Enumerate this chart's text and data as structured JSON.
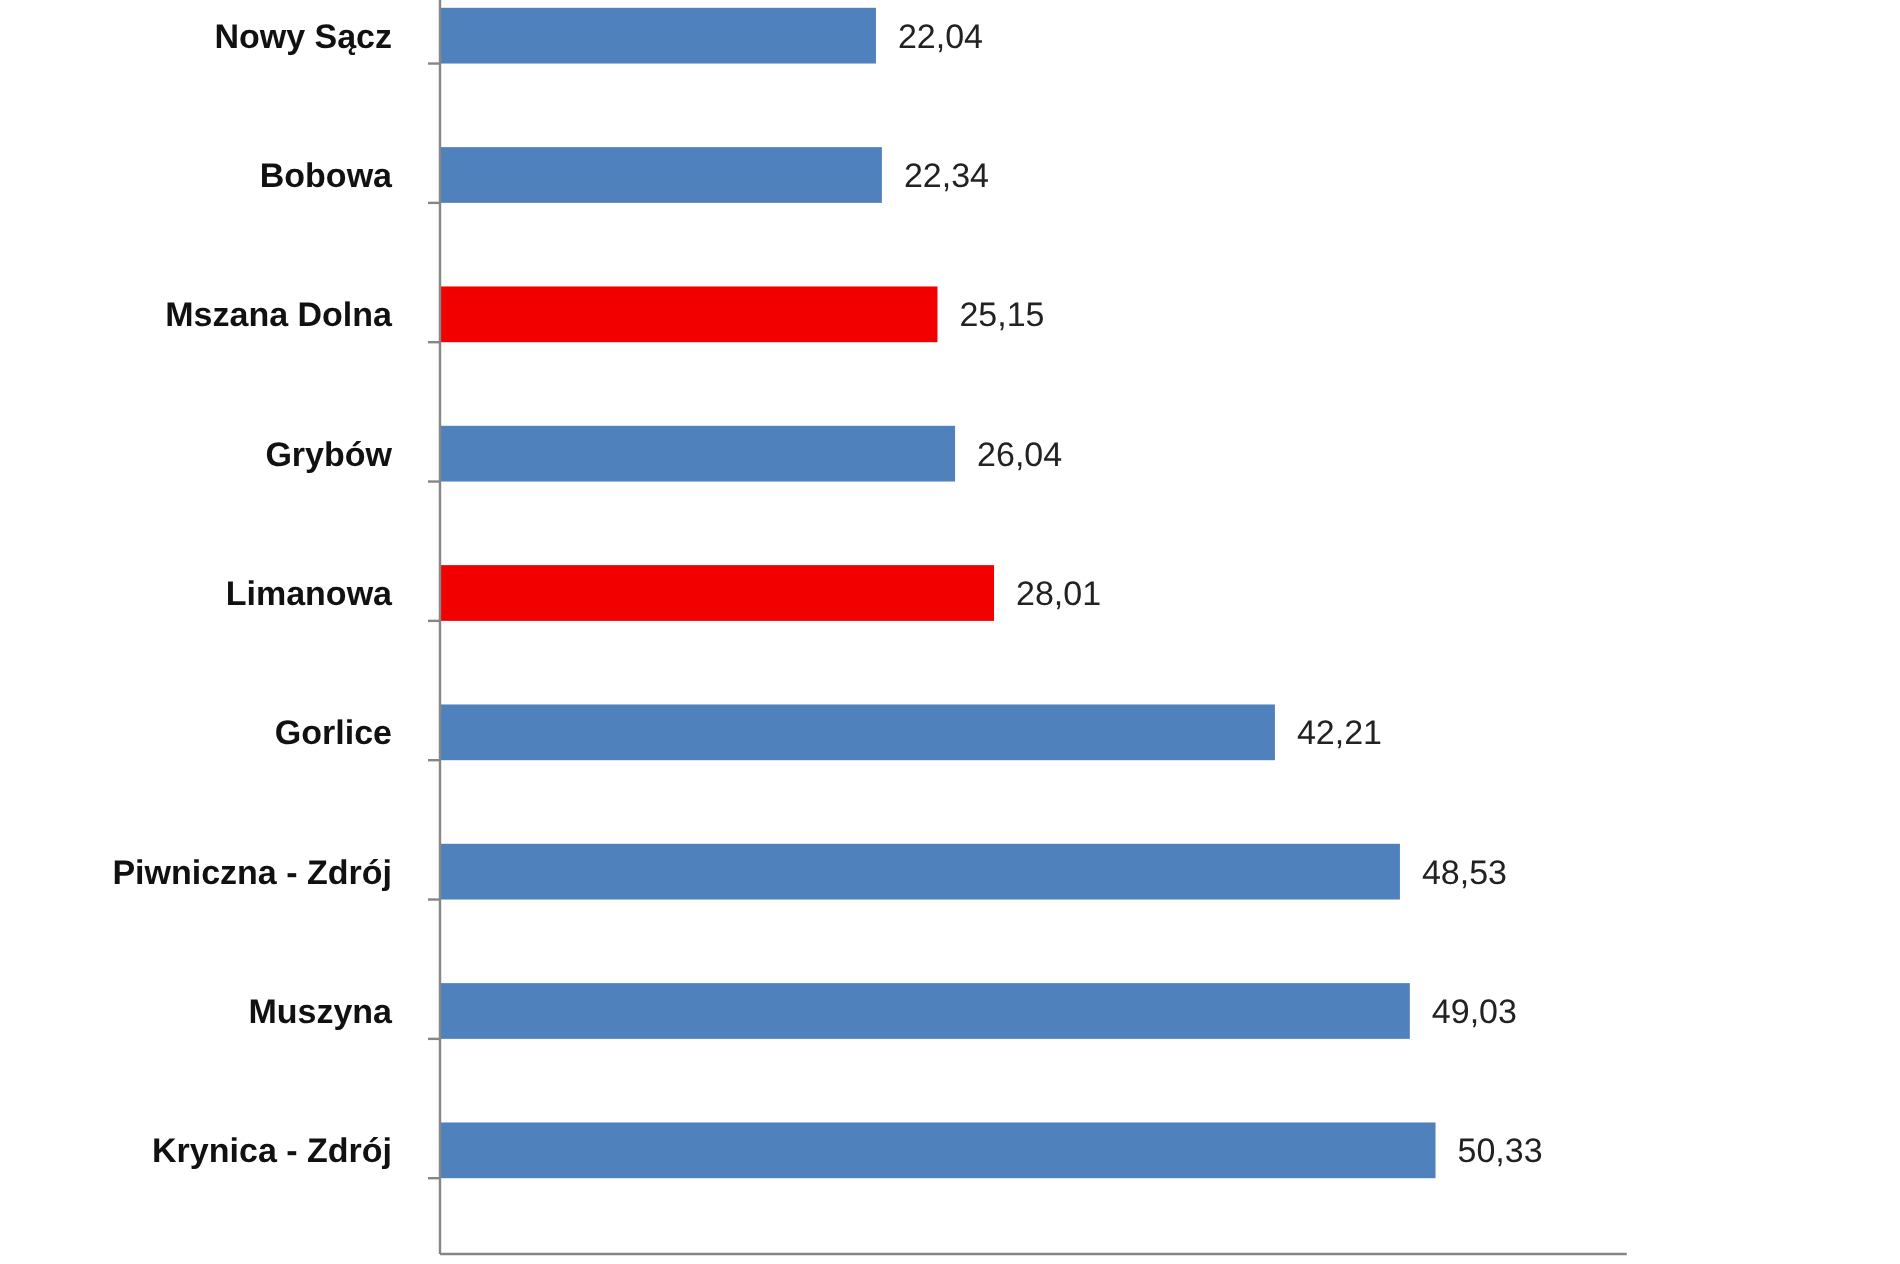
{
  "chart_data": {
    "type": "bar",
    "orientation": "horizontal",
    "categories": [
      "Nowy Sącz",
      "Bobowa",
      "Mszana Dolna",
      "Grybów",
      "Limanowa",
      "Gorlice",
      "Piwniczna - Zdrój",
      "Muszyna",
      "Krynica - Zdrój"
    ],
    "values": [
      22.04,
      22.34,
      25.15,
      26.04,
      28.01,
      42.21,
      48.53,
      49.03,
      50.33
    ],
    "colors": [
      "#4f81bd",
      "#4f81bd",
      "#f20000",
      "#4f81bd",
      "#f20000",
      "#4f81bd",
      "#4f81bd",
      "#4f81bd",
      "#4f81bd"
    ],
    "value_labels": [
      "22,04",
      "22,34",
      "25,15",
      "26,04",
      "28,01",
      "42,21",
      "48,53",
      "49,03",
      "50,33"
    ],
    "xlim": [
      0,
      60
    ],
    "tick_labels": "y"
  }
}
